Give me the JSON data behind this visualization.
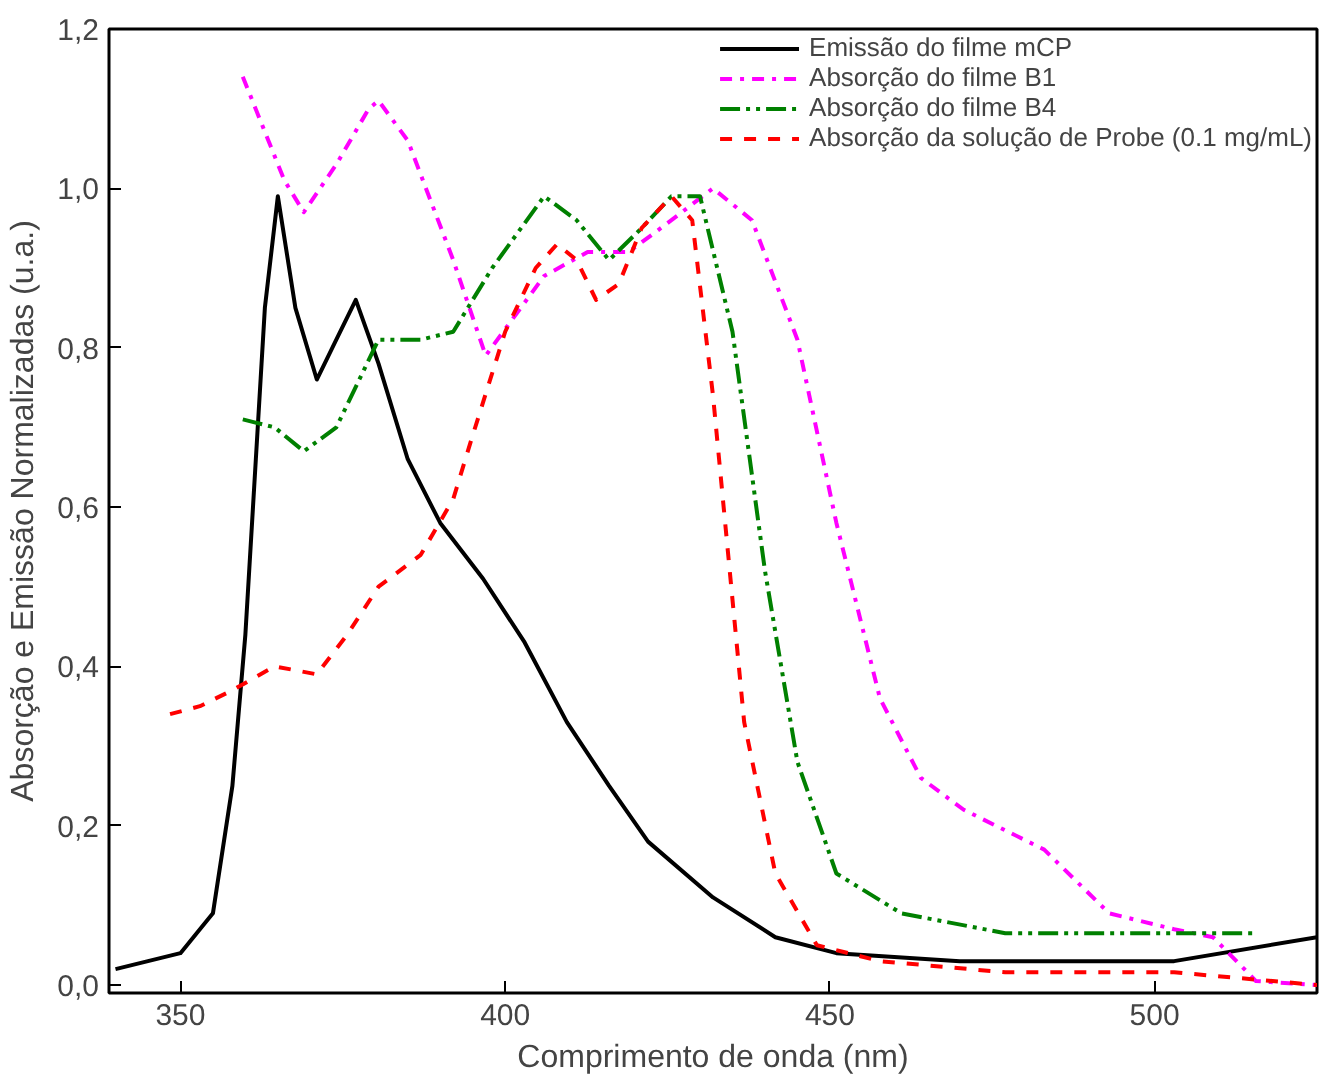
{
  "chart_data": {
    "type": "line",
    "xlabel": "Comprimento de onda (nm)",
    "ylabel": "Absorção e Emissão Normalizadas (u.a.)",
    "xlim": [
      339,
      525
    ],
    "ylim": [
      -0.01,
      1.2
    ],
    "xticks": [
      350,
      400,
      450,
      500
    ],
    "yticks": [
      {
        "value": 0,
        "label": "0,0"
      },
      {
        "value": 0.2,
        "label": "0,2"
      },
      {
        "value": 0.4,
        "label": "0,4"
      },
      {
        "value": 0.6,
        "label": "0,6"
      },
      {
        "value": 0.8,
        "label": "0,8"
      },
      {
        "value": 1.0,
        "label": "1,0"
      },
      {
        "value": 1.2,
        "label": "1,2"
      }
    ],
    "grid": false,
    "legend": "top right",
    "marker": "none",
    "series": [
      {
        "name": "Emissão do filme mCP",
        "color": "#000000",
        "line_style": "solid",
        "x": [
          340,
          345,
          350,
          355,
          358,
          360,
          363,
          365,
          367.7,
          371,
          374,
          377,
          380.5,
          385,
          390,
          396.6,
          403,
          409.5,
          416,
          422,
          432,
          441.6,
          451,
          470,
          503,
          525
        ],
        "values": [
          0.02,
          0.03,
          0.04,
          0.09,
          0.25,
          0.44,
          0.85,
          0.99,
          0.85,
          0.76,
          0.81,
          0.86,
          0.78,
          0.66,
          0.58,
          0.51,
          0.43,
          0.33,
          0.25,
          0.18,
          0.11,
          0.06,
          0.04,
          0.03,
          0.03,
          0.06
        ]
      },
      {
        "name": "Absorção do filme B1",
        "color": "#ff00ff",
        "line_style": "dashdot",
        "x": [
          359.6,
          366,
          369,
          374,
          379,
          380.5,
          385,
          392,
          397,
          406,
          412.7,
          419,
          425.6,
          432,
          438,
          445,
          451,
          457.7,
          464,
          470.6,
          483,
          493,
          503,
          509,
          515.6,
          525
        ],
        "values": [
          1.14,
          1.01,
          0.97,
          1.03,
          1.1,
          1.11,
          1.06,
          0.91,
          0.79,
          0.89,
          0.92,
          0.92,
          0.96,
          1.0,
          0.96,
          0.81,
          0.58,
          0.36,
          0.26,
          0.22,
          0.17,
          0.09,
          0.07,
          0.06,
          0.005,
          0.0
        ]
      },
      {
        "name": "Absorção do filme B4",
        "color": "#008000",
        "line_style": "dashdotdot",
        "x": [
          359.6,
          364.5,
          369,
          374,
          380.5,
          387,
          392,
          398,
          406,
          411,
          416,
          421,
          425.6,
          430,
          435,
          440,
          445,
          451,
          461,
          477,
          503,
          515.6
        ],
        "values": [
          0.71,
          0.7,
          0.67,
          0.7,
          0.81,
          0.81,
          0.82,
          0.9,
          0.99,
          0.96,
          0.91,
          0.95,
          0.99,
          0.99,
          0.82,
          0.52,
          0.28,
          0.14,
          0.09,
          0.065,
          0.065,
          0.065
        ]
      },
      {
        "name": "Absorção da solução de Probe (0.1 mg/mL)",
        "color": "#ff0000",
        "line_style": "dashed",
        "x": [
          348.4,
          353,
          358,
          364.5,
          371,
          375.7,
          380.5,
          387,
          392,
          395,
          400,
          404.7,
          408,
          411,
          414,
          417.5,
          421,
          425.6,
          428.8,
          432,
          436.8,
          441.6,
          448,
          457.7,
          477,
          503,
          525
        ],
        "values": [
          0.34,
          0.35,
          0.37,
          0.4,
          0.39,
          0.44,
          0.5,
          0.54,
          0.61,
          0.69,
          0.82,
          0.9,
          0.93,
          0.91,
          0.86,
          0.88,
          0.95,
          0.99,
          0.96,
          0.74,
          0.33,
          0.14,
          0.05,
          0.03,
          0.016,
          0.016,
          0.0
        ]
      }
    ]
  }
}
